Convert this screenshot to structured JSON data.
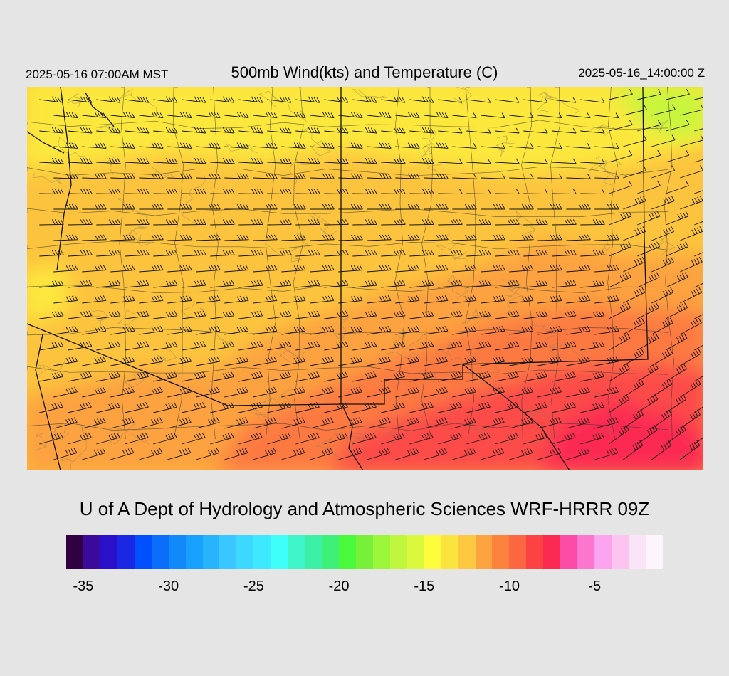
{
  "header": {
    "local_time": "2025-05-16 07:00AM MST",
    "title": "500mb Wind(kts) and Temperature (C)",
    "utc_time": "2025-05-16_14:00:00 Z"
  },
  "credit": "U of A Dept of Hydrology and Atmospheric Sciences WRF-HRRR 09Z",
  "colorbar": {
    "colors": [
      "#300040",
      "#3a0a9c",
      "#2a10c8",
      "#1a28e6",
      "#0050ff",
      "#0a6efa",
      "#1289fa",
      "#18a0ff",
      "#27b4fd",
      "#3ac6ff",
      "#3cd8ff",
      "#3ee8ff",
      "#3ffffa",
      "#3ef5c8",
      "#3cf0a8",
      "#3ef078",
      "#4af83c",
      "#78f03a",
      "#9cf63c",
      "#c0f63e",
      "#dcf83e",
      "#fcfc3c",
      "#fce43e",
      "#fcc83f",
      "#fca43f",
      "#fc823e",
      "#fc6640",
      "#fc4242",
      "#fc2a52",
      "#fc4ca8",
      "#fc76d0",
      "#fca4f0",
      "#fcc4ee",
      "#fce4f8",
      "#fef4fc"
    ],
    "labels": [
      "-35",
      "-30",
      "-25",
      "-20",
      "-15",
      "-10",
      "-5"
    ]
  },
  "map": {
    "field_colors": {
      "coldest": "#c8f53e",
      "cold": "#fce83c",
      "mid": "#fcc43e",
      "warm": "#fca23f",
      "warmer": "#fc7a42",
      "hot": "#fc4c48",
      "hottest": "#fc2c52"
    }
  }
}
